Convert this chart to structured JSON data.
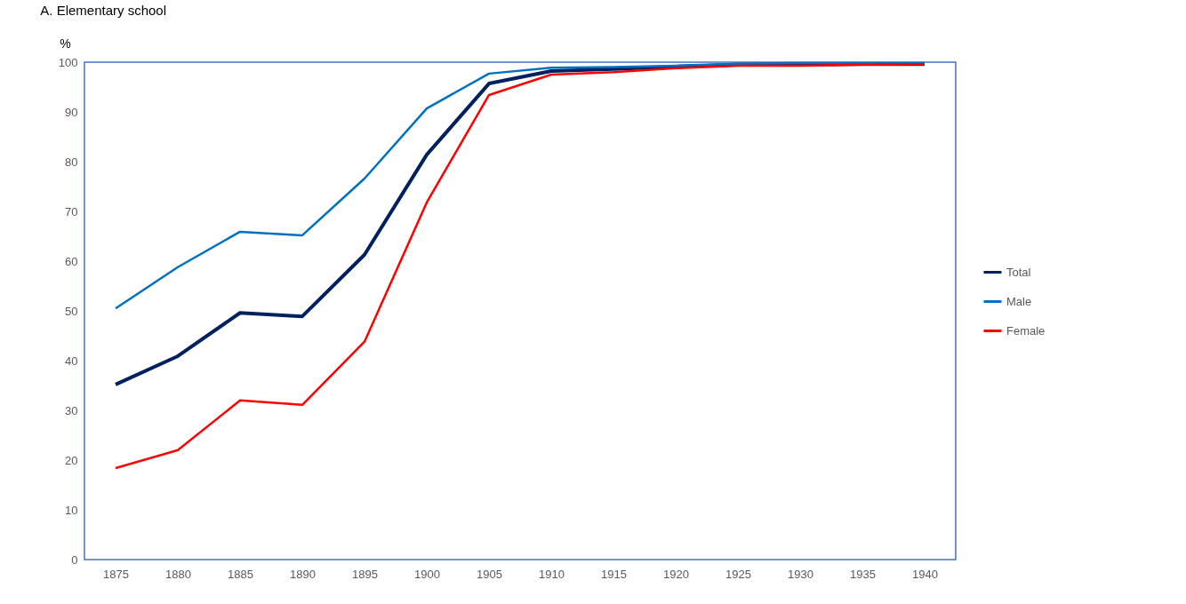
{
  "chart_data": {
    "type": "line",
    "title": "A. Elementary school",
    "ylabel": "%",
    "categories": [
      "1875",
      "1880",
      "1885",
      "1890",
      "1895",
      "1900",
      "1905",
      "1910",
      "1915",
      "1920",
      "1925",
      "1930",
      "1935",
      "1940"
    ],
    "series": [
      {
        "name": "Total",
        "color": "#002060",
        "values": [
          35.2,
          40.9,
          49.6,
          48.9,
          61.3,
          81.4,
          95.7,
          98.2,
          98.6,
          99.1,
          99.5,
          99.5,
          99.6,
          99.6
        ]
      },
      {
        "name": "Male",
        "color": "#0070c0",
        "values": [
          50.5,
          58.8,
          65.9,
          65.2,
          76.6,
          90.7,
          97.7,
          98.9,
          99.0,
          99.3,
          99.7,
          99.8,
          99.8,
          99.8
        ]
      },
      {
        "name": "Female",
        "color": "#ff0000",
        "values": [
          18.4,
          22.0,
          32.0,
          31.1,
          43.8,
          71.8,
          93.4,
          97.5,
          98.0,
          98.8,
          99.3,
          99.3,
          99.5,
          99.6
        ]
      }
    ],
    "ylim": [
      0,
      100
    ],
    "yticks": [
      0,
      10,
      20,
      30,
      40,
      50,
      60,
      70,
      80,
      90,
      100
    ],
    "grid": false,
    "legend": "right",
    "marker": "none",
    "line_style": "solid"
  }
}
